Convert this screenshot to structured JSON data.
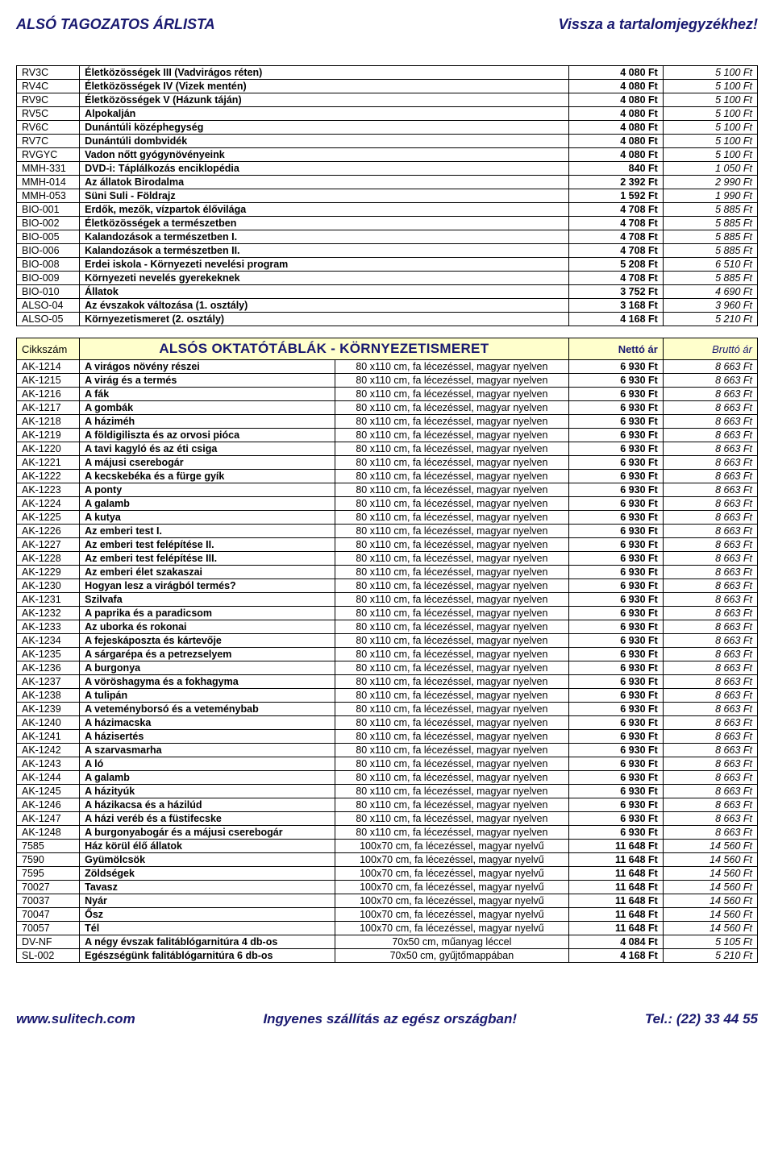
{
  "header": {
    "left": "ALSÓ TAGOZATOS ÁRLISTA",
    "right": "Vissza a tartalomjegyzékhez!"
  },
  "footer": {
    "left": "www.sulitech.com",
    "center": "Ingyenes szállítás az egész országban!",
    "right": "Tel.: (22) 33 44 55"
  },
  "sectionHeader": {
    "code": "Cikkszám",
    "title": "ALSÓS OKTATÓTÁBLÁK - KÖRNYEZETISMERET",
    "net": "Nettó ár",
    "gross": "Bruttó ár"
  },
  "table1": [
    {
      "code": "RV3C",
      "name": "Életközösségek III (Vadvirágos réten)",
      "net": "4 080 Ft",
      "gross": "5 100 Ft"
    },
    {
      "code": "RV4C",
      "name": "Életközösségek IV (Vizek mentén)",
      "net": "4 080 Ft",
      "gross": "5 100 Ft"
    },
    {
      "code": "RV9C",
      "name": "Életközösségek V (Házunk táján)",
      "net": "4 080 Ft",
      "gross": "5 100 Ft"
    },
    {
      "code": "RV5C",
      "name": "Alpokalján",
      "net": "4 080 Ft",
      "gross": "5 100 Ft"
    },
    {
      "code": "RV6C",
      "name": "Dunántúli középhegység",
      "net": "4 080 Ft",
      "gross": "5 100 Ft"
    },
    {
      "code": "RV7C",
      "name": "Dunántúli dombvidék",
      "net": "4 080 Ft",
      "gross": "5 100 Ft"
    },
    {
      "code": "RVGYC",
      "name": "Vadon nőtt gyógynövényeink",
      "net": "4 080 Ft",
      "gross": "5 100 Ft"
    },
    {
      "code": "MMH-331",
      "name": "DVD-i: Táplálkozás enciklopédia",
      "net": "840 Ft",
      "gross": "1 050 Ft"
    },
    {
      "code": "MMH-014",
      "name": "Az állatok Birodalma",
      "net": "2 392 Ft",
      "gross": "2 990 Ft"
    },
    {
      "code": "MMH-053",
      "name": "Süni Suli - Földrajz",
      "net": "1 592 Ft",
      "gross": "1 990 Ft"
    },
    {
      "code": "BIO-001",
      "name": "Erdők, mezők, vízpartok élővilága",
      "net": "4 708 Ft",
      "gross": "5 885 Ft"
    },
    {
      "code": "BIO-002",
      "name": "Életközösségek a természetben",
      "net": "4 708 Ft",
      "gross": "5 885 Ft"
    },
    {
      "code": "BIO-005",
      "name": "Kalandozások a természetben I.",
      "net": "4 708 Ft",
      "gross": "5 885 Ft"
    },
    {
      "code": "BIO-006",
      "name": "Kalandozások a természetben II.",
      "net": "4 708 Ft",
      "gross": "5 885 Ft"
    },
    {
      "code": "BIO-008",
      "name": "Erdei iskola - Környezeti nevelési program",
      "net": "5 208 Ft",
      "gross": "6 510 Ft"
    },
    {
      "code": "BIO-009",
      "name": "Környezeti nevelés gyerekeknek",
      "net": "4 708 Ft",
      "gross": "5 885 Ft"
    },
    {
      "code": "BIO-010",
      "name": "Állatok",
      "net": "3 752 Ft",
      "gross": "4 690 Ft"
    },
    {
      "code": "ALSO-04",
      "name": "Az évszakok változása (1. osztály)",
      "net": "3 168 Ft",
      "gross": "3 960 Ft"
    },
    {
      "code": "ALSO-05",
      "name": "Környezetismeret (2. osztály)",
      "net": "4 168 Ft",
      "gross": "5 210 Ft"
    }
  ],
  "table2": [
    {
      "code": "AK-1214",
      "name": "A virágos növény részei",
      "desc": "80 x110 cm, fa lécezéssel, magyar nyelven",
      "net": "6 930 Ft",
      "gross": "8 663 Ft"
    },
    {
      "code": "AK-1215",
      "name": "A virág és a termés",
      "desc": "80 x110 cm, fa lécezéssel, magyar nyelven",
      "net": "6 930 Ft",
      "gross": "8 663 Ft"
    },
    {
      "code": "AK-1216",
      "name": "A fák",
      "desc": "80 x110 cm, fa lécezéssel, magyar nyelven",
      "net": "6 930 Ft",
      "gross": "8 663 Ft"
    },
    {
      "code": "AK-1217",
      "name": "A gombák",
      "desc": "80 x110 cm, fa lécezéssel, magyar nyelven",
      "net": "6 930 Ft",
      "gross": "8 663 Ft"
    },
    {
      "code": "AK-1218",
      "name": "A háziméh",
      "desc": "80 x110 cm, fa lécezéssel, magyar nyelven",
      "net": "6 930 Ft",
      "gross": "8 663 Ft"
    },
    {
      "code": "AK-1219",
      "name": "A földigiliszta és az orvosi pióca",
      "desc": "80 x110 cm, fa lécezéssel, magyar nyelven",
      "net": "6 930 Ft",
      "gross": "8 663 Ft"
    },
    {
      "code": "AK-1220",
      "name": "A tavi kagyló és az éti csiga",
      "desc": "80 x110 cm, fa lécezéssel, magyar nyelven",
      "net": "6 930 Ft",
      "gross": "8 663 Ft"
    },
    {
      "code": "AK-1221",
      "name": "A májusi cserebogár",
      "desc": "80 x110 cm, fa lécezéssel, magyar nyelven",
      "net": "6 930 Ft",
      "gross": "8 663 Ft"
    },
    {
      "code": "AK-1222",
      "name": "A kecskebéka és a fürge gyík",
      "desc": "80 x110 cm, fa lécezéssel, magyar nyelven",
      "net": "6 930 Ft",
      "gross": "8 663 Ft"
    },
    {
      "code": "AK-1223",
      "name": "A ponty",
      "desc": "80 x110 cm, fa lécezéssel, magyar nyelven",
      "net": "6 930 Ft",
      "gross": "8 663 Ft"
    },
    {
      "code": "AK-1224",
      "name": "A galamb",
      "desc": "80 x110 cm, fa lécezéssel, magyar nyelven",
      "net": "6 930 Ft",
      "gross": "8 663 Ft"
    },
    {
      "code": "AK-1225",
      "name": "A kutya",
      "desc": "80 x110 cm, fa lécezéssel, magyar nyelven",
      "net": "6 930 Ft",
      "gross": "8 663 Ft"
    },
    {
      "code": "AK-1226",
      "name": "Az emberi test I.",
      "desc": "80 x110 cm, fa lécezéssel, magyar nyelven",
      "net": "6 930 Ft",
      "gross": "8 663 Ft"
    },
    {
      "code": "AK-1227",
      "name": "Az emberi test felépítése II.",
      "desc": "80 x110 cm, fa lécezéssel, magyar nyelven",
      "net": "6 930 Ft",
      "gross": "8 663 Ft"
    },
    {
      "code": "AK-1228",
      "name": "Az emberi test felépítése III.",
      "desc": "80 x110 cm, fa lécezéssel, magyar nyelven",
      "net": "6 930 Ft",
      "gross": "8 663 Ft"
    },
    {
      "code": "AK-1229",
      "name": "Az emberi élet szakaszai",
      "desc": "80 x110 cm, fa lécezéssel, magyar nyelven",
      "net": "6 930 Ft",
      "gross": "8 663 Ft"
    },
    {
      "code": "AK-1230",
      "name": "Hogyan lesz a virágból termés?",
      "desc": "80 x110 cm, fa lécezéssel, magyar nyelven",
      "net": "6 930 Ft",
      "gross": "8 663 Ft"
    },
    {
      "code": "AK-1231",
      "name": "Szilvafa",
      "desc": "80 x110 cm, fa lécezéssel, magyar nyelven",
      "net": "6 930 Ft",
      "gross": "8 663 Ft"
    },
    {
      "code": "AK-1232",
      "name": "A paprika és a paradicsom",
      "desc": "80 x110 cm, fa lécezéssel, magyar nyelven",
      "net": "6 930 Ft",
      "gross": "8 663 Ft"
    },
    {
      "code": "AK-1233",
      "name": "Az uborka és rokonai",
      "desc": "80 x110 cm, fa lécezéssel, magyar nyelven",
      "net": "6 930 Ft",
      "gross": "8 663 Ft"
    },
    {
      "code": "AK-1234",
      "name": "A fejeskáposzta és kártevője",
      "desc": "80 x110 cm, fa lécezéssel, magyar nyelven",
      "net": "6 930 Ft",
      "gross": "8 663 Ft"
    },
    {
      "code": "AK-1235",
      "name": "A sárgarépa és a petrezselyem",
      "desc": "80 x110 cm, fa lécezéssel, magyar nyelven",
      "net": "6 930 Ft",
      "gross": "8 663 Ft"
    },
    {
      "code": "AK-1236",
      "name": "A burgonya",
      "desc": "80 x110 cm, fa lécezéssel, magyar nyelven",
      "net": "6 930 Ft",
      "gross": "8 663 Ft"
    },
    {
      "code": "AK-1237",
      "name": "A vöröshagyma és a fokhagyma",
      "desc": "80 x110 cm, fa lécezéssel, magyar nyelven",
      "net": "6 930 Ft",
      "gross": "8 663 Ft"
    },
    {
      "code": "AK-1238",
      "name": "A tulipán",
      "desc": "80 x110 cm, fa lécezéssel, magyar nyelven",
      "net": "6 930 Ft",
      "gross": "8 663 Ft"
    },
    {
      "code": "AK-1239",
      "name": "A veteményborsó és a veteménybab",
      "desc": "80 x110 cm, fa lécezéssel, magyar nyelven",
      "net": "6 930 Ft",
      "gross": "8 663 Ft"
    },
    {
      "code": "AK-1240",
      "name": "A házimacska",
      "desc": "80 x110 cm, fa lécezéssel, magyar nyelven",
      "net": "6 930 Ft",
      "gross": "8 663 Ft"
    },
    {
      "code": "AK-1241",
      "name": "A házisertés",
      "desc": "80 x110 cm, fa lécezéssel, magyar nyelven",
      "net": "6 930 Ft",
      "gross": "8 663 Ft"
    },
    {
      "code": "AK-1242",
      "name": "A szarvasmarha",
      "desc": "80 x110 cm, fa lécezéssel, magyar nyelven",
      "net": "6 930 Ft",
      "gross": "8 663 Ft"
    },
    {
      "code": "AK-1243",
      "name": "A ló",
      "desc": "80 x110 cm, fa lécezéssel, magyar nyelven",
      "net": "6 930 Ft",
      "gross": "8 663 Ft"
    },
    {
      "code": "AK-1244",
      "name": "A galamb",
      "desc": "80 x110 cm, fa lécezéssel, magyar nyelven",
      "net": "6 930 Ft",
      "gross": "8 663 Ft"
    },
    {
      "code": "AK-1245",
      "name": "A házityúk",
      "desc": "80 x110 cm, fa lécezéssel, magyar nyelven",
      "net": "6 930 Ft",
      "gross": "8 663 Ft"
    },
    {
      "code": "AK-1246",
      "name": "A házikacsa és a házilúd",
      "desc": "80 x110 cm, fa lécezéssel, magyar nyelven",
      "net": "6 930 Ft",
      "gross": "8 663 Ft"
    },
    {
      "code": "AK-1247",
      "name": "A házi veréb és a füstifecske",
      "desc": "80 x110 cm, fa lécezéssel, magyar nyelven",
      "net": "6 930 Ft",
      "gross": "8 663 Ft"
    },
    {
      "code": "AK-1248",
      "name": "A burgonyabogár és a májusi cserebogár",
      "desc": "80 x110 cm, fa lécezéssel, magyar nyelven",
      "net": "6 930 Ft",
      "gross": "8 663 Ft"
    },
    {
      "code": "7585",
      "name": "Ház körül élő állatok",
      "desc": "100x70 cm, fa lécezéssel, magyar nyelvű",
      "net": "11 648 Ft",
      "gross": "14 560 Ft"
    },
    {
      "code": "7590",
      "name": "Gyümölcsök",
      "desc": "100x70 cm, fa lécezéssel, magyar nyelvű",
      "net": "11 648 Ft",
      "gross": "14 560 Ft"
    },
    {
      "code": "7595",
      "name": "Zöldségek",
      "desc": "100x70 cm, fa lécezéssel, magyar nyelvű",
      "net": "11 648 Ft",
      "gross": "14 560 Ft"
    },
    {
      "code": "70027",
      "name": "Tavasz",
      "desc": "100x70 cm, fa lécezéssel, magyar nyelvű",
      "net": "11 648 Ft",
      "gross": "14 560 Ft"
    },
    {
      "code": "70037",
      "name": "Nyár",
      "desc": "100x70 cm, fa lécezéssel, magyar nyelvű",
      "net": "11 648 Ft",
      "gross": "14 560 Ft"
    },
    {
      "code": "70047",
      "name": "Ősz",
      "desc": "100x70 cm, fa lécezéssel, magyar nyelvű",
      "net": "11 648 Ft",
      "gross": "14 560 Ft"
    },
    {
      "code": "70057",
      "name": "Tél",
      "desc": "100x70 cm, fa lécezéssel, magyar nyelvű",
      "net": "11 648 Ft",
      "gross": "14 560 Ft"
    },
    {
      "code": "DV-NF",
      "name": "A négy évszak falitáblógarnitúra 4 db-os",
      "desc": "70x50 cm, műanyag léccel",
      "net": "4 084 Ft",
      "gross": "5 105 Ft"
    },
    {
      "code": "SL-002",
      "name": "Egészségünk falitáblógarnitúra 6 db-os",
      "desc": "70x50 cm, gyűjtőmappában",
      "net": "4 168 Ft",
      "gross": "5 210 Ft"
    }
  ]
}
